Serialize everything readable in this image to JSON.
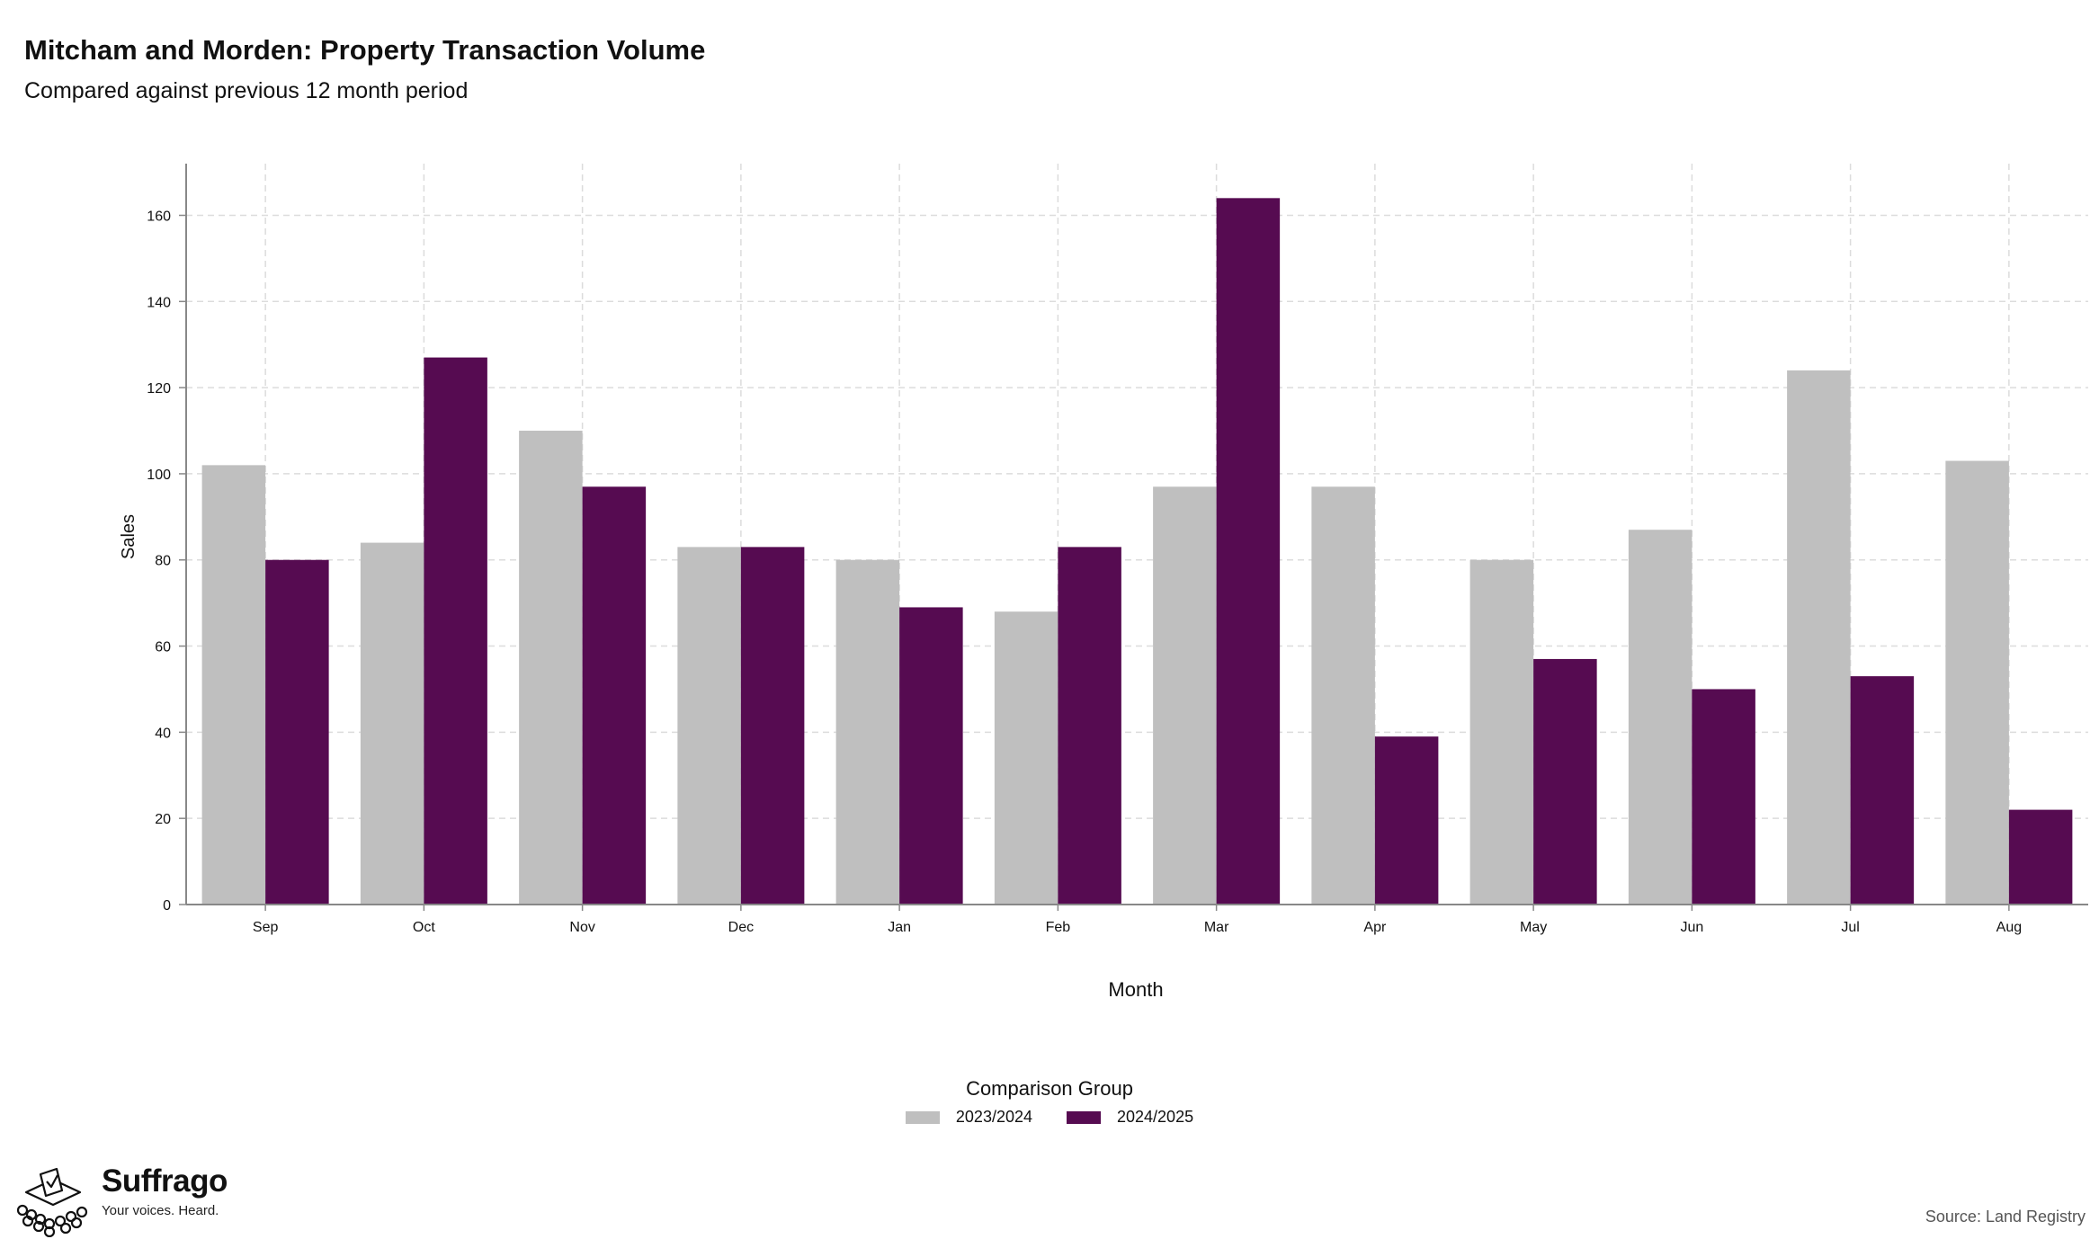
{
  "title": "Mitcham and Morden: Property Transaction Volume",
  "subtitle": "Compared against previous 12 month period",
  "source": "Source: Land Registry",
  "brand": {
    "name": "Suffrago",
    "tagline": "Your voices. Heard."
  },
  "colors": {
    "series_2023_2024": "#bfbfbf",
    "series_2024_2025": "#560b51",
    "grid": "#dcdcdc",
    "axis": "#888888"
  },
  "chart_data": {
    "type": "bar",
    "title": "Mitcham and Morden: Property Transaction Volume",
    "subtitle": "Compared against previous 12 month period",
    "xlabel": "Month",
    "ylabel": "Sales",
    "categories": [
      "Sep",
      "Oct",
      "Nov",
      "Dec",
      "Jan",
      "Feb",
      "Mar",
      "Apr",
      "May",
      "Jun",
      "Jul",
      "Aug"
    ],
    "series": [
      {
        "name": "2023/2024",
        "color": "#bfbfbf",
        "values": [
          102,
          84,
          110,
          83,
          80,
          68,
          97,
          97,
          80,
          87,
          124,
          103
        ]
      },
      {
        "name": "2024/2025",
        "color": "#560b51",
        "values": [
          80,
          127,
          97,
          83,
          69,
          83,
          164,
          39,
          57,
          50,
          53,
          22
        ]
      }
    ],
    "ylim": [
      0,
      172
    ],
    "yticks": [
      0,
      20,
      40,
      60,
      80,
      100,
      120,
      140,
      160
    ],
    "grid": true,
    "legend": {
      "title": "Comparison Group",
      "position": "bottom"
    }
  }
}
